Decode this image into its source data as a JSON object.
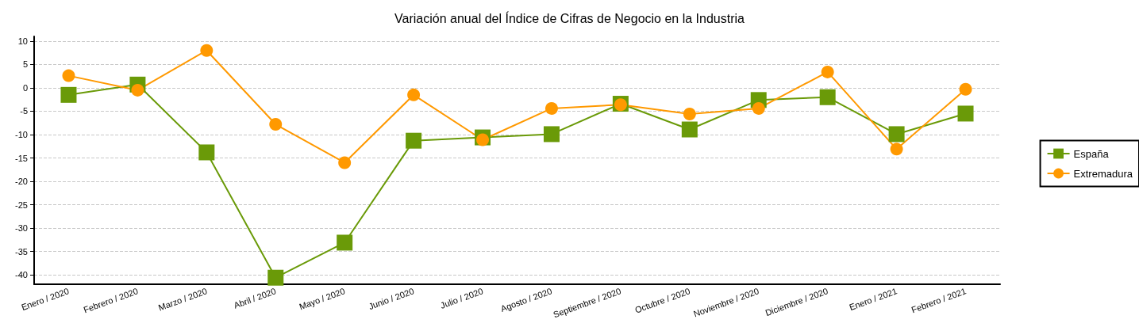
{
  "chart_data": {
    "type": "line",
    "title": "Variación anual del Índice de Cifras de Negocio en la Industria",
    "categories": [
      "Enero / 2020",
      "Febrero / 2020",
      "Marzo / 2020",
      "Abril / 2020",
      "Mayo / 2020",
      "Junio / 2020",
      "Julio / 2020",
      "Agosto / 2020",
      "Septiembre / 2020",
      "Octubre / 2020",
      "Noviembre / 2020",
      "Diciembre / 2020",
      "Enero / 2021",
      "Febrero / 2021"
    ],
    "series": [
      {
        "name": "España",
        "color": "#6a9a08",
        "marker": "square",
        "values": [
          -1.5,
          0.7,
          -13.8,
          -40.6,
          -33.1,
          -11.3,
          -10.6,
          -9.9,
          -3.4,
          -8.9,
          -2.6,
          -2.0,
          -9.9,
          -5.5
        ]
      },
      {
        "name": "Extremadura",
        "color": "#ff9900",
        "marker": "circle",
        "values": [
          2.6,
          -0.5,
          8.0,
          -7.8,
          -16.0,
          -1.5,
          -11.1,
          -4.4,
          -3.6,
          -5.6,
          -4.4,
          3.4,
          -13.1,
          -0.3
        ]
      }
    ],
    "ylim": [
      -42,
      11
    ],
    "yticks": [
      -40,
      -35,
      -30,
      -25,
      -20,
      -15,
      -10,
      -5,
      0,
      5,
      10
    ],
    "grid": "y",
    "legend": "right",
    "line_style": "solid"
  }
}
